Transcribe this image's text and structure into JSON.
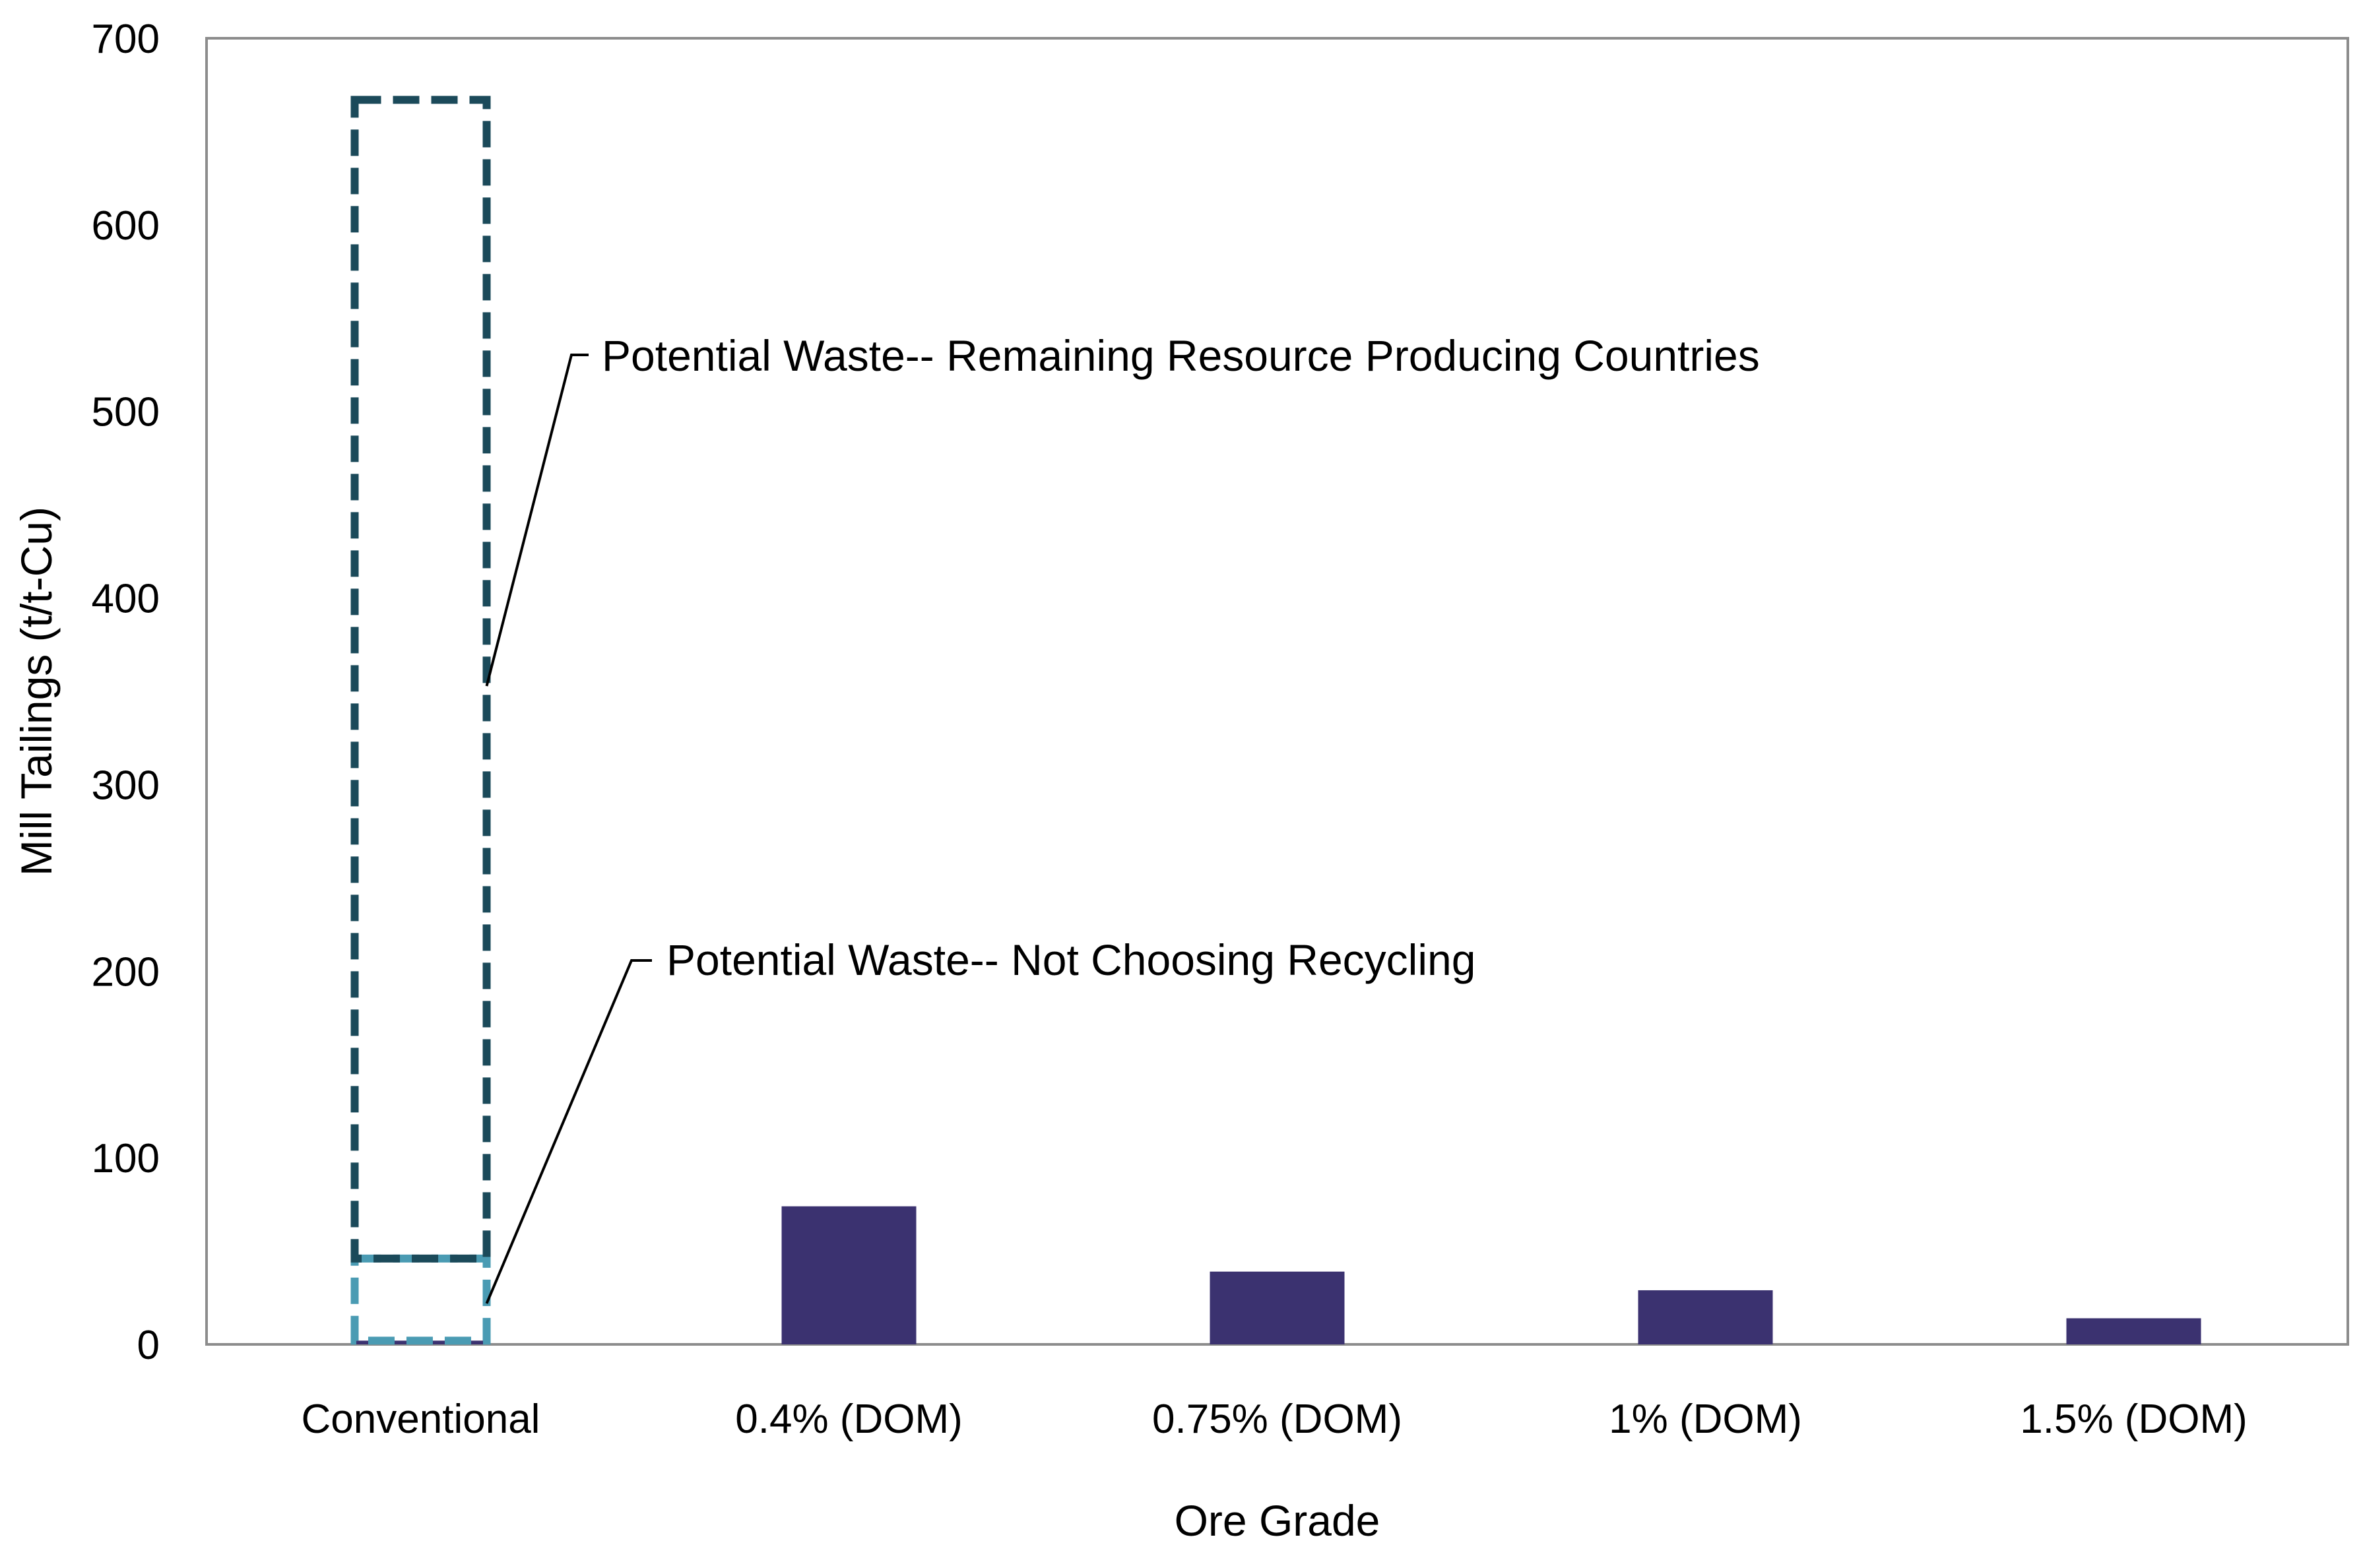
{
  "chart_data": {
    "type": "bar",
    "title": "",
    "xlabel": "Ore Grade",
    "ylabel": "Mill Tailings (t/t-Cu)",
    "ylim": [
      0,
      700
    ],
    "yticks": [
      0,
      100,
      200,
      300,
      400,
      500,
      600,
      700
    ],
    "grid": false,
    "categories": [
      "Conventional",
      "0.4% (DOM)",
      "0.75% (DOM)",
      "1% (DOM)",
      "1.5% (DOM)"
    ],
    "series": [
      {
        "name": "Mill Tailings",
        "color": "#3b3270",
        "values": [
          2,
          74,
          39,
          29,
          14
        ]
      }
    ],
    "potential_waste": [
      {
        "name": "Potential Waste-- Not Choosing Recycling",
        "label": "Potential Waste-- Not Choosing Recycling",
        "category": "Conventional",
        "range": [
          2,
          46
        ],
        "color": "#4a9bb3",
        "style": "dashed"
      },
      {
        "name": "Potential Waste-- Remaining Resource Producing Countries",
        "label": "Potential Waste-- Remaining Resource Producing Countries",
        "category": "Conventional",
        "range": [
          46,
          667
        ],
        "color": "#1b4a5a",
        "style": "dashed"
      }
    ]
  }
}
